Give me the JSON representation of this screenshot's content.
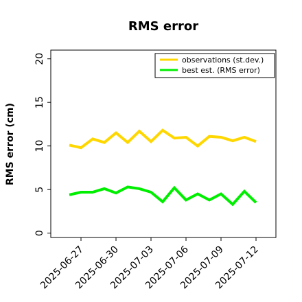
{
  "chart_data": {
    "type": "line",
    "title": "RMS error",
    "xlabel": "",
    "ylabel": "RMS error (cm)",
    "ylim": [
      -0.5,
      21
    ],
    "yticks": [
      0,
      5,
      10,
      15,
      20
    ],
    "xticks": [
      "2025-06-27",
      "2025-06-30",
      "2025-07-03",
      "2025-07-06",
      "2025-07-09",
      "2025-07-12"
    ],
    "highlight_tick": "2025-07-03",
    "highlight_color": "#228B22",
    "grid": false,
    "legend_position": "top-right",
    "x": [
      "2025-06-26",
      "2025-06-27",
      "2025-06-28",
      "2025-06-29",
      "2025-06-30",
      "2025-07-01",
      "2025-07-02",
      "2025-07-03",
      "2025-07-04",
      "2025-07-05",
      "2025-07-06",
      "2025-07-07",
      "2025-07-08",
      "2025-07-09",
      "2025-07-10",
      "2025-07-11",
      "2025-07-12"
    ],
    "series": [
      {
        "name": "observations (st.dev.)",
        "color": "#FFD700",
        "values": [
          10.1,
          9.8,
          10.8,
          10.4,
          11.5,
          10.4,
          11.7,
          10.5,
          11.8,
          10.9,
          11.0,
          10.0,
          11.1,
          11.0,
          10.6,
          11.0,
          10.5
        ]
      },
      {
        "name": "best est. (RMS error)",
        "color": "#00EE00",
        "values": [
          4.4,
          4.7,
          4.7,
          5.1,
          4.6,
          5.3,
          5.1,
          4.7,
          3.6,
          5.2,
          3.8,
          4.5,
          3.8,
          4.5,
          3.3,
          4.8,
          3.5
        ]
      }
    ]
  }
}
